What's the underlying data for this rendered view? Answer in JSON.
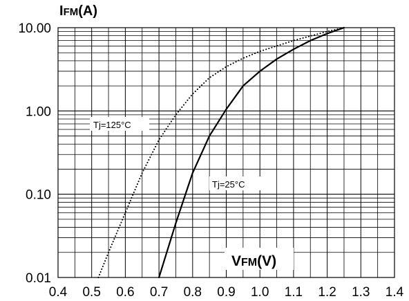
{
  "chart_data": {
    "type": "line",
    "x_scale": "linear",
    "y_scale": "log",
    "xlim": [
      0.4,
      1.4
    ],
    "ylim": [
      0.01,
      10
    ],
    "grid": true,
    "x_ticks": [
      "0.4",
      "0.5",
      "0.6",
      "0.7",
      "0.8",
      "0.9",
      "1.0",
      "1.1",
      "1.2",
      "1.3",
      "1.4"
    ],
    "y_ticks": [
      "10.00",
      "1.00",
      "0.10",
      "0.01"
    ],
    "y_tick_values": [
      10,
      1,
      0.1,
      0.01
    ],
    "ylabel": {
      "main": "I",
      "sub": "FM",
      "unit": "(A)"
    },
    "xlabel": {
      "main": "V",
      "sub": "FM",
      "unit": "(V)"
    },
    "series": [
      {
        "name": "Tj=125°C",
        "line_style": "dotted",
        "color": "#000000",
        "x": [
          0.52,
          0.55,
          0.6,
          0.65,
          0.7,
          0.75,
          0.8,
          0.85,
          0.9,
          0.95,
          1.0,
          1.1,
          1.2,
          1.25
        ],
        "y": [
          0.01,
          0.02,
          0.06,
          0.18,
          0.45,
          0.9,
          1.6,
          2.5,
          3.4,
          4.3,
          5.2,
          7.0,
          9.0,
          10.0
        ]
      },
      {
        "name": "Tj=25°C",
        "line_style": "solid",
        "color": "#000000",
        "x": [
          0.7,
          0.75,
          0.8,
          0.85,
          0.9,
          0.95,
          1.0,
          1.05,
          1.1,
          1.15,
          1.2,
          1.25
        ],
        "y": [
          0.01,
          0.045,
          0.18,
          0.5,
          1.05,
          2.0,
          3.0,
          4.2,
          5.5,
          7.0,
          8.5,
          10.0
        ]
      }
    ]
  }
}
